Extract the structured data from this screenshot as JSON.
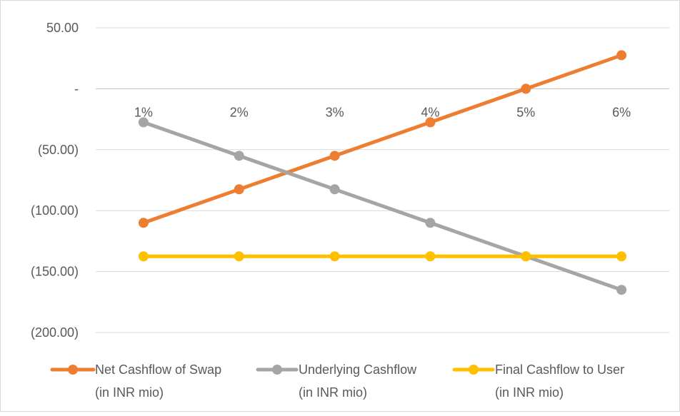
{
  "chart_data": {
    "type": "line",
    "categories": [
      "1%",
      "2%",
      "3%",
      "4%",
      "5%",
      "6%"
    ],
    "y_tick_labels": [
      "50.00",
      "-",
      "(50.00)",
      "(100.00)",
      "(150.00)",
      "(200.00)"
    ],
    "y_tick_values": [
      50,
      0,
      -50,
      -100,
      -150,
      -200
    ],
    "ylim": [
      -200,
      50
    ],
    "grid": true,
    "legend_position": "bottom",
    "series": [
      {
        "name_line1": "Net Cashflow of Swap",
        "name_line2": "(in INR mio)",
        "color": "#ED7D31",
        "values": [
          -110,
          -82.5,
          -55,
          -27.5,
          0,
          27.5
        ]
      },
      {
        "name_line1": "Underlying Cashflow",
        "name_line2": "(in INR mio)",
        "color": "#A5A5A5",
        "values": [
          -27.5,
          -55,
          -82.5,
          -110,
          -137.5,
          -165
        ]
      },
      {
        "name_line1": "Final Cashflow to User",
        "name_line2": "(in INR mio)",
        "color": "#FFC000",
        "values": [
          -137.5,
          -137.5,
          -137.5,
          -137.5,
          -137.5,
          -137.5
        ]
      }
    ]
  }
}
